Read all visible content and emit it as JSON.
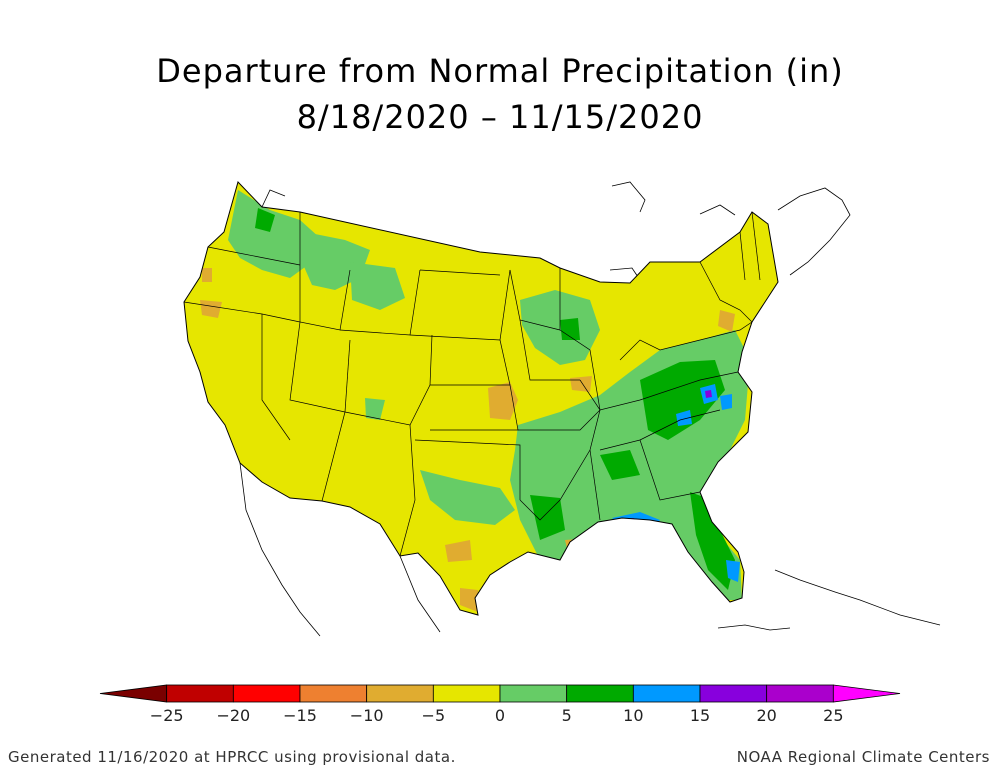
{
  "title_line1": "Departure from Normal Precipitation (in)",
  "title_line2": "8/18/2020 – 11/15/2020",
  "legend": {
    "bins": [
      {
        "lo": -30,
        "hi": -25,
        "color": "#7a0000"
      },
      {
        "lo": -25,
        "hi": -20,
        "color": "#c00000"
      },
      {
        "lo": -20,
        "hi": -15,
        "color": "#ff0000"
      },
      {
        "lo": -15,
        "hi": -10,
        "color": "#ee8030"
      },
      {
        "lo": -10,
        "hi": -5,
        "color": "#e0ac30"
      },
      {
        "lo": -5,
        "hi": 0,
        "color": "#e6e600"
      },
      {
        "lo": 0,
        "hi": 5,
        "color": "#66cc66"
      },
      {
        "lo": 5,
        "hi": 10,
        "color": "#00aa00"
      },
      {
        "lo": 10,
        "hi": 15,
        "color": "#0099ff"
      },
      {
        "lo": 15,
        "hi": 20,
        "color": "#8800dd"
      },
      {
        "lo": 20,
        "hi": 25,
        "color": "#aa00cc"
      },
      {
        "lo": 25,
        "hi": 30,
        "color": "#ff00ff"
      }
    ],
    "tick_labels": [
      "−25",
      "−20",
      "−15",
      "−10",
      "−5",
      "0",
      "5",
      "10",
      "15",
      "20",
      "25"
    ]
  },
  "footer_left": "Generated 11/16/2020 at HPRCC using provisional data.",
  "footer_right": "NOAA Regional Climate Centers"
}
